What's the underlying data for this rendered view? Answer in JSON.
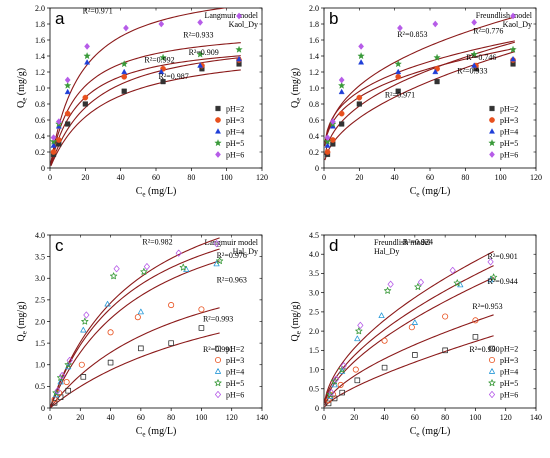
{
  "chart_data": [
    {
      "type": "scatter",
      "panel": "a",
      "model": [
        "Langmuir model",
        "Kaol_Dy"
      ],
      "xlabel": "C",
      "xlabel_sub": "e",
      "xlabel_unit": " (mg/L)",
      "ylabel": "Q",
      "ylabel_sub": "e",
      "ylabel_unit": " (mg/g)",
      "xlim": [
        0,
        120
      ],
      "ylim": [
        0,
        2.0
      ],
      "xticks": [
        0,
        20,
        40,
        60,
        80,
        100,
        120
      ],
      "yticks": [
        0,
        0.2,
        0.4,
        0.6,
        0.8,
        1.0,
        1.2,
        1.4,
        1.6,
        1.8,
        2.0
      ],
      "ytick_decimals": 1,
      "marker_fill": "filled",
      "legend_position": "bottom-right",
      "fit": {
        "kind": "langmuir",
        "params": [
          [
            1.55,
            0.035
          ],
          [
            1.7,
            0.04
          ],
          [
            1.62,
            0.06
          ],
          [
            1.78,
            0.068
          ],
          [
            2.35,
            0.058
          ]
        ],
        "xmax": 108
      },
      "series": [
        {
          "name": "pH=2",
          "marker": "square",
          "color": "#333333",
          "x": [
            2,
            5,
            10,
            20,
            42,
            64,
            86,
            107
          ],
          "y": [
            0.17,
            0.3,
            0.55,
            0.8,
            0.96,
            1.08,
            1.24,
            1.3
          ]
        },
        {
          "name": "pH=3",
          "marker": "circle",
          "color": "#e8501e",
          "x": [
            2,
            5,
            10,
            20,
            42,
            64,
            86,
            107
          ],
          "y": [
            0.2,
            0.35,
            0.68,
            0.88,
            1.14,
            1.24,
            1.28,
            1.35
          ]
        },
        {
          "name": "pH=4",
          "marker": "triangle",
          "color": "#1f3fd8",
          "x": [
            2,
            5,
            10,
            21,
            42,
            63,
            85,
            107
          ],
          "y": [
            0.28,
            0.52,
            0.95,
            1.32,
            1.2,
            1.2,
            1.28,
            1.36
          ]
        },
        {
          "name": "pH=5",
          "marker": "star",
          "color": "#3a9a3a",
          "x": [
            2,
            5,
            10,
            21,
            42,
            64,
            85,
            107
          ],
          "y": [
            0.33,
            0.55,
            1.03,
            1.4,
            1.3,
            1.38,
            1.42,
            1.48
          ]
        },
        {
          "name": "pH=6",
          "marker": "diamond",
          "color": "#b65ce8",
          "x": [
            2,
            5,
            10,
            21,
            43,
            63,
            85,
            107
          ],
          "y": [
            0.38,
            0.58,
            1.1,
            1.52,
            1.75,
            1.8,
            1.82,
            1.9
          ]
        }
      ],
      "annotations": [
        {
          "text": "R²=0.971",
          "x": 27,
          "y": 1.93
        },
        {
          "text": "R²=0.933",
          "x": 84,
          "y": 1.63
        },
        {
          "text": "R²=0.909",
          "x": 87,
          "y": 1.41
        },
        {
          "text": "R²=0.992",
          "x": 62,
          "y": 1.32
        },
        {
          "text": "R²=0.987",
          "x": 70,
          "y": 1.11
        }
      ]
    },
    {
      "type": "scatter",
      "panel": "b",
      "model": [
        "Freundlish model",
        "Kaol_Dy"
      ],
      "xlabel": "C",
      "xlabel_sub": "e",
      "xlabel_unit": " (mg/L)",
      "ylabel": "Q",
      "ylabel_sub": "e",
      "ylabel_unit": " (mg/g)",
      "xlim": [
        0,
        120
      ],
      "ylim": [
        0,
        2.0
      ],
      "xticks": [
        0,
        20,
        40,
        60,
        80,
        100,
        120
      ],
      "yticks": [
        0,
        0.2,
        0.4,
        0.6,
        0.8,
        1.0,
        1.2,
        1.4,
        1.6,
        1.8,
        2.0
      ],
      "ytick_decimals": 1,
      "marker_fill": "filled",
      "legend_position": "bottom-right",
      "fit": {
        "kind": "freundlich",
        "params": [
          [
            0.14,
            0.5
          ],
          [
            0.22,
            0.42
          ],
          [
            0.35,
            0.31
          ],
          [
            0.39,
            0.3
          ],
          [
            0.35,
            0.36
          ]
        ],
        "xmax": 108
      },
      "series": [
        {
          "name": "pH=2",
          "marker": "square",
          "color": "#333333",
          "x": [
            2,
            5,
            10,
            20,
            42,
            64,
            86,
            107
          ],
          "y": [
            0.17,
            0.3,
            0.55,
            0.8,
            0.96,
            1.08,
            1.24,
            1.3
          ]
        },
        {
          "name": "pH=3",
          "marker": "circle",
          "color": "#e8501e",
          "x": [
            2,
            5,
            10,
            20,
            42,
            64,
            86,
            107
          ],
          "y": [
            0.2,
            0.35,
            0.68,
            0.88,
            1.14,
            1.24,
            1.28,
            1.35
          ]
        },
        {
          "name": "pH=4",
          "marker": "triangle",
          "color": "#1f3fd8",
          "x": [
            2,
            5,
            10,
            21,
            42,
            63,
            85,
            107
          ],
          "y": [
            0.28,
            0.52,
            0.95,
            1.32,
            1.2,
            1.2,
            1.28,
            1.36
          ]
        },
        {
          "name": "pH=5",
          "marker": "star",
          "color": "#3a9a3a",
          "x": [
            2,
            5,
            10,
            21,
            42,
            64,
            85,
            107
          ],
          "y": [
            0.33,
            0.55,
            1.03,
            1.4,
            1.3,
            1.38,
            1.42,
            1.48
          ]
        },
        {
          "name": "pH=6",
          "marker": "diamond",
          "color": "#b65ce8",
          "x": [
            2,
            5,
            10,
            21,
            43,
            63,
            85,
            107
          ],
          "y": [
            0.38,
            0.58,
            1.1,
            1.52,
            1.75,
            1.8,
            1.82,
            1.9
          ]
        }
      ],
      "annotations": [
        {
          "text": "R²=0.853",
          "x": 50,
          "y": 1.64
        },
        {
          "text": "R²=0.776",
          "x": 93,
          "y": 1.68
        },
        {
          "text": "R²=0.746",
          "x": 89,
          "y": 1.35
        },
        {
          "text": "R²=0.933",
          "x": 84,
          "y": 1.18
        },
        {
          "text": "R²=0.971",
          "x": 43,
          "y": 0.88
        }
      ]
    },
    {
      "type": "scatter",
      "panel": "c",
      "model": [
        "Langmuir model",
        "Hal_Dy"
      ],
      "xlabel": "C",
      "xlabel_sub": "e",
      "xlabel_unit": " (mg/L)",
      "ylabel": "Q",
      "ylabel_sub": "e",
      "ylabel_unit": " (mg/g)",
      "xlim": [
        0,
        140
      ],
      "ylim": [
        0,
        4.0
      ],
      "xticks": [
        0,
        20,
        40,
        60,
        80,
        100,
        120,
        140
      ],
      "yticks": [
        0,
        0.5,
        1.0,
        1.5,
        2.0,
        2.5,
        3.0,
        3.5,
        4.0
      ],
      "ytick_decimals": 1,
      "marker_fill": "hollow",
      "legend_position": "bottom-right",
      "fit": {
        "kind": "langmuir",
        "params": [
          [
            3.8,
            0.0075
          ],
          [
            4.2,
            0.011
          ],
          [
            5.3,
            0.016
          ],
          [
            5.5,
            0.018
          ],
          [
            6.0,
            0.017
          ]
        ],
        "xmax": 112
      },
      "series": [
        {
          "name": "pH=2",
          "marker": "square",
          "color": "#333333",
          "x": [
            3,
            7,
            12,
            22,
            40,
            60,
            80,
            100
          ],
          "y": [
            0.12,
            0.25,
            0.4,
            0.72,
            1.05,
            1.38,
            1.5,
            1.85
          ]
        },
        {
          "name": "pH=3",
          "marker": "circle",
          "color": "#e8501e",
          "x": [
            3,
            6,
            11,
            21,
            40,
            58,
            80,
            100
          ],
          "y": [
            0.2,
            0.35,
            0.6,
            1.0,
            1.75,
            2.1,
            2.38,
            2.28
          ]
        },
        {
          "name": "pH=4",
          "marker": "triangle",
          "color": "#2a9ad8",
          "x": [
            4,
            7,
            12,
            22,
            38,
            60,
            90,
            110
          ],
          "y": [
            0.3,
            0.6,
            0.95,
            1.8,
            2.4,
            2.22,
            3.2,
            3.33
          ]
        },
        {
          "name": "pH=5",
          "marker": "star",
          "color": "#3a9a3a",
          "x": [
            4,
            7,
            12,
            23,
            42,
            62,
            88,
            112
          ],
          "y": [
            0.35,
            0.7,
            1.0,
            2.0,
            3.05,
            3.15,
            3.25,
            3.4
          ]
        },
        {
          "name": "pH=6",
          "marker": "diamond",
          "color": "#b65ce8",
          "x": [
            5,
            8,
            13,
            24,
            44,
            64,
            85,
            110
          ],
          "y": [
            0.4,
            0.75,
            1.1,
            2.15,
            3.22,
            3.27,
            3.58,
            3.8
          ]
        }
      ],
      "annotations": [
        {
          "text": "R²=0.982",
          "x": 71,
          "y": 3.78
        },
        {
          "text": "R²=0.976",
          "x": 120,
          "y": 3.47
        },
        {
          "text": "R²=0.963",
          "x": 120,
          "y": 2.9
        },
        {
          "text": "R²=0.993",
          "x": 111,
          "y": 2.0
        },
        {
          "text": "R²=0.991",
          "x": 111,
          "y": 1.3
        }
      ]
    },
    {
      "type": "scatter",
      "panel": "d",
      "model": [
        "Freundlish model",
        "Hal_Dy"
      ],
      "xlabel": "C",
      "xlabel_sub": "e",
      "xlabel_unit": " (mg/L)",
      "ylabel": "Q",
      "ylabel_sub": "e",
      "ylabel_unit": " (mg/g)",
      "xlim": [
        0,
        140
      ],
      "ylim": [
        0,
        4.5
      ],
      "xticks": [
        0,
        20,
        40,
        60,
        80,
        100,
        120,
        140
      ],
      "yticks": [
        0,
        0.5,
        1.0,
        1.5,
        2.0,
        2.5,
        3.0,
        3.5,
        4.0,
        4.5
      ],
      "ytick_decimals": 1,
      "marker_fill": "hollow",
      "legend_position": "bottom-right",
      "fit": {
        "kind": "freundlich",
        "params": [
          [
            0.06,
            0.73
          ],
          [
            0.13,
            0.62
          ],
          [
            0.2,
            0.6
          ],
          [
            0.24,
            0.58
          ],
          [
            0.29,
            0.56
          ]
        ],
        "xmax": 112
      },
      "series": [
        {
          "name": "pH=2",
          "marker": "square",
          "color": "#333333",
          "x": [
            3,
            7,
            12,
            22,
            40,
            60,
            80,
            100
          ],
          "y": [
            0.12,
            0.25,
            0.4,
            0.72,
            1.05,
            1.38,
            1.5,
            1.85
          ]
        },
        {
          "name": "pH=3",
          "marker": "circle",
          "color": "#e8501e",
          "x": [
            3,
            6,
            11,
            21,
            40,
            58,
            80,
            100
          ],
          "y": [
            0.2,
            0.35,
            0.6,
            1.0,
            1.75,
            2.1,
            2.38,
            2.28
          ]
        },
        {
          "name": "pH=4",
          "marker": "triangle",
          "color": "#2a9ad8",
          "x": [
            4,
            7,
            12,
            22,
            38,
            60,
            90,
            110
          ],
          "y": [
            0.3,
            0.6,
            0.95,
            1.8,
            2.4,
            2.22,
            3.2,
            3.33
          ]
        },
        {
          "name": "pH=5",
          "marker": "star",
          "color": "#3a9a3a",
          "x": [
            4,
            7,
            12,
            23,
            42,
            62,
            88,
            112
          ],
          "y": [
            0.35,
            0.7,
            1.0,
            2.0,
            3.05,
            3.15,
            3.25,
            3.4
          ]
        },
        {
          "name": "pH=6",
          "marker": "diamond",
          "color": "#b65ce8",
          "x": [
            5,
            8,
            13,
            24,
            44,
            64,
            85,
            110
          ],
          "y": [
            0.4,
            0.75,
            1.1,
            2.15,
            3.22,
            3.27,
            3.58,
            3.8
          ]
        }
      ],
      "annotations": [
        {
          "text": "R²=0.924",
          "x": 62,
          "y": 4.25
        },
        {
          "text": "R²=0.901",
          "x": 118,
          "y": 3.88
        },
        {
          "text": "R²=0.944",
          "x": 118,
          "y": 3.23
        },
        {
          "text": "R²=0.953",
          "x": 108,
          "y": 2.58
        },
        {
          "text": "R²=0.990",
          "x": 106,
          "y": 1.46
        }
      ]
    }
  ]
}
